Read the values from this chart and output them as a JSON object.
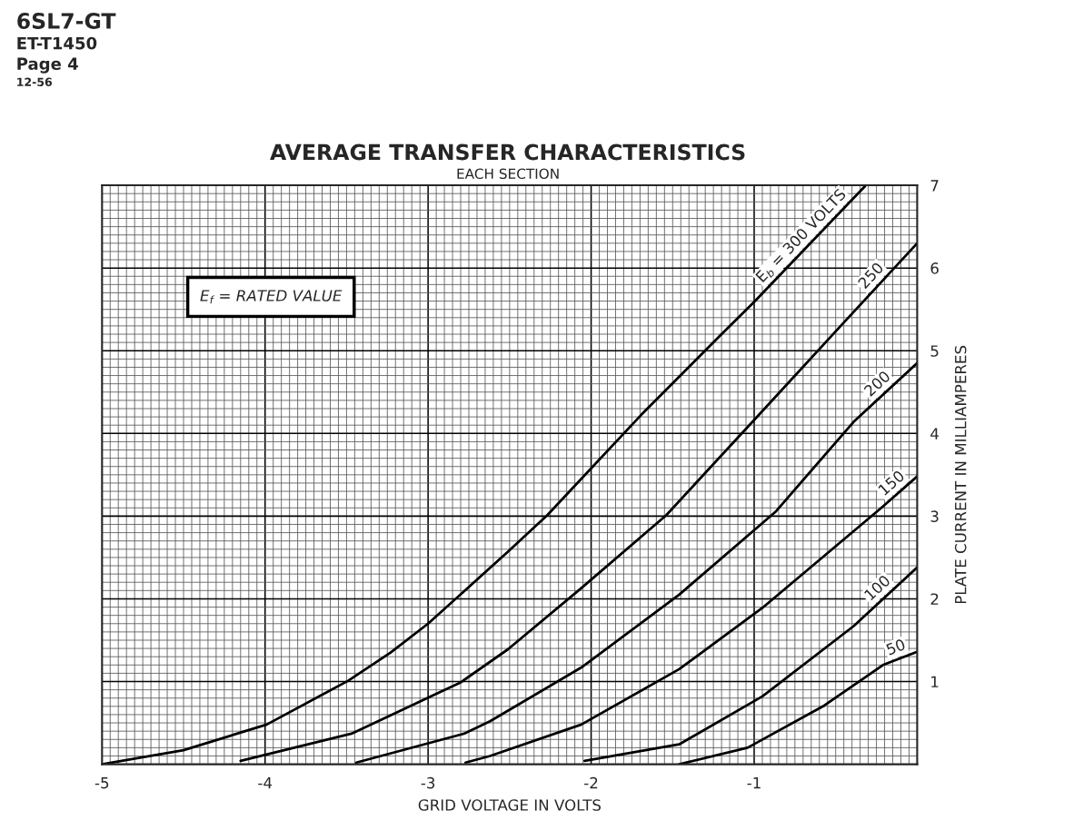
{
  "chart_data": {
    "type": "line",
    "title": "AVERAGE TRANSFER CHARACTERISTICS",
    "subtitle": "EACH SECTION",
    "xlabel": "GRID VOLTAGE IN VOLTS",
    "ylabel": "PLATE CURRENT IN MILLIAMPERES",
    "annotations": [
      "6SL7-GT",
      "ET-T1450",
      "Page 4",
      "12-56",
      "E$_{f}$ = RATED VALUE"
    ],
    "xlim": [
      -5,
      0
    ],
    "ylim": [
      0,
      7
    ],
    "xticks": [
      -5,
      -4,
      -3,
      -2,
      -1
    ],
    "yticks": [
      1,
      2,
      3,
      4,
      5,
      6,
      7
    ],
    "grid": true,
    "marker": "none",
    "line_style": "solid",
    "series": [
      {
        "name": "E$_{b}$ = 300 VOLTS",
        "color": "#000000",
        "x": [
          -5,
          -4.5,
          -3.99,
          -3.49,
          -3.23,
          -3.0,
          -2.51,
          -2.27,
          -1.69,
          -1.21,
          -1.0,
          -0.32
        ],
        "values": [
          0,
          0.17,
          0.48,
          1.01,
          1.35,
          1.7,
          2.57,
          3.01,
          4.23,
          5.18,
          5.59,
          6.99
        ]
      },
      {
        "name": "250",
        "color": "#000000",
        "x": [
          -4.15,
          -3.47,
          -2.8,
          -2.51,
          -2.06,
          -1.54,
          -0.95,
          -0.46,
          0
        ],
        "values": [
          0.04,
          0.37,
          0.99,
          1.39,
          2.13,
          3.01,
          4.27,
          5.32,
          6.3
        ]
      },
      {
        "name": "200",
        "color": "#000000",
        "x": [
          -3.44,
          -2.78,
          -2.62,
          -2.06,
          -1.46,
          -0.87,
          -0.39,
          0
        ],
        "values": [
          0.02,
          0.37,
          0.52,
          1.17,
          2.05,
          3.05,
          4.14,
          4.85
        ]
      },
      {
        "name": "150",
        "color": "#000000",
        "x": [
          -2.77,
          -2.62,
          -2.06,
          -1.46,
          -0.95,
          -0.22,
          0
        ],
        "values": [
          0.02,
          0.1,
          0.48,
          1.15,
          1.89,
          3.1,
          3.48
        ]
      },
      {
        "name": "100",
        "color": "#000000",
        "x": [
          -2.04,
          -1.46,
          -0.95,
          -0.39,
          0
        ],
        "values": [
          0.04,
          0.24,
          0.82,
          1.67,
          2.38
        ]
      },
      {
        "name": "50",
        "color": "#000000",
        "x": [
          -1.46,
          -1.04,
          -0.57,
          -0.21,
          0
        ],
        "values": [
          0,
          0.2,
          0.71,
          1.2,
          1.36
        ]
      }
    ]
  }
}
